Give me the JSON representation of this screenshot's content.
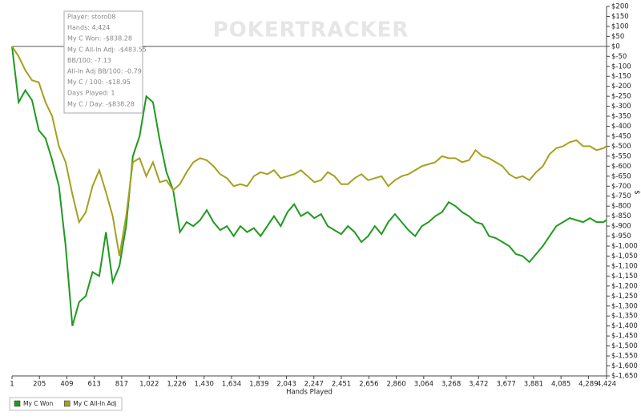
{
  "watermark": "POKERTRACKER",
  "tooltip": [
    "Player: storo08",
    "Hands: 4,424",
    "My C Won: -$838.28",
    "My C All-In Adj: -$483.55",
    "BB/100: -7.13",
    "All-In Adj BB/100: -0.79",
    "My C / 100: -$18.95",
    "Days Played: 1",
    "My C / Day: -$838.28"
  ],
  "chart_data": {
    "type": "line",
    "x_label": "Hands Played",
    "y_label": "$",
    "zero_line": true,
    "y_axis_side": "right",
    "x": [
      1,
      50,
      100,
      150,
      200,
      250,
      300,
      350,
      400,
      450,
      500,
      550,
      600,
      650,
      700,
      750,
      800,
      850,
      900,
      950,
      1000,
      1050,
      1100,
      1150,
      1200,
      1250,
      1300,
      1350,
      1400,
      1450,
      1500,
      1550,
      1600,
      1650,
      1700,
      1750,
      1800,
      1850,
      1900,
      1950,
      2000,
      2050,
      2100,
      2150,
      2200,
      2250,
      2300,
      2350,
      2400,
      2450,
      2500,
      2550,
      2600,
      2650,
      2700,
      2750,
      2800,
      2850,
      2900,
      2950,
      3000,
      3050,
      3100,
      3150,
      3200,
      3250,
      3300,
      3350,
      3400,
      3450,
      3500,
      3550,
      3600,
      3650,
      3700,
      3750,
      3800,
      3850,
      3900,
      3950,
      4000,
      4050,
      4100,
      4150,
      4200,
      4250,
      4300,
      4350,
      4400,
      4424
    ],
    "series": [
      {
        "name": "My C Won",
        "color": "#1f9a1f",
        "values": [
          0,
          -280,
          -220,
          -270,
          -420,
          -460,
          -570,
          -700,
          -1000,
          -1400,
          -1280,
          -1250,
          -1130,
          -1150,
          -930,
          -1180,
          -1100,
          -900,
          -550,
          -450,
          -250,
          -280,
          -470,
          -630,
          -720,
          -930,
          -880,
          -900,
          -870,
          -820,
          -880,
          -920,
          -900,
          -950,
          -900,
          -930,
          -910,
          -950,
          -900,
          -850,
          -900,
          -830,
          -790,
          -850,
          -830,
          -860,
          -840,
          -900,
          -920,
          -940,
          -900,
          -930,
          -980,
          -950,
          -900,
          -940,
          -880,
          -840,
          -880,
          -920,
          -950,
          -900,
          -880,
          -850,
          -830,
          -780,
          -800,
          -830,
          -850,
          -880,
          -890,
          -950,
          -960,
          -980,
          -1000,
          -1040,
          -1050,
          -1080,
          -1040,
          -1000,
          -950,
          -900,
          -880,
          -860,
          -870,
          -880,
          -860,
          -880,
          -880,
          -870
        ]
      },
      {
        "name": "My C All-In Adj",
        "color": "#a6a020",
        "values": [
          0,
          -50,
          -120,
          -170,
          -180,
          -280,
          -350,
          -500,
          -580,
          -740,
          -880,
          -830,
          -700,
          -620,
          -730,
          -850,
          -1050,
          -850,
          -580,
          -560,
          -650,
          -580,
          -680,
          -670,
          -720,
          -690,
          -630,
          -580,
          -560,
          -570,
          -600,
          -640,
          -660,
          -700,
          -690,
          -700,
          -650,
          -630,
          -640,
          -620,
          -660,
          -650,
          -640,
          -620,
          -650,
          -680,
          -670,
          -630,
          -650,
          -690,
          -690,
          -660,
          -640,
          -670,
          -660,
          -650,
          -700,
          -670,
          -650,
          -640,
          -620,
          -600,
          -590,
          -580,
          -550,
          -560,
          -560,
          -580,
          -570,
          -520,
          -550,
          -560,
          -580,
          -600,
          -640,
          -660,
          -650,
          -670,
          -630,
          -600,
          -540,
          -510,
          -500,
          -480,
          -470,
          -500,
          -500,
          -520,
          -510,
          -500
        ]
      }
    ],
    "xlim": [
      1,
      4424
    ],
    "xticks": [
      1,
      205,
      409,
      613,
      817,
      {
        "value": 1022,
        "label": "1,022"
      },
      {
        "value": 1226,
        "label": "1,226"
      },
      {
        "value": 1430,
        "label": "1,430"
      },
      {
        "value": 1634,
        "label": "1,634"
      },
      {
        "value": 1839,
        "label": "1,839"
      },
      {
        "value": 2043,
        "label": "2,043"
      },
      {
        "value": 2247,
        "label": "2,247"
      },
      {
        "value": 2451,
        "label": "2,451"
      },
      {
        "value": 2656,
        "label": "2,656"
      },
      {
        "value": 2860,
        "label": "2,860"
      },
      {
        "value": 3064,
        "label": "3,064"
      },
      {
        "value": 3268,
        "label": "3,268"
      },
      {
        "value": 3472,
        "label": "3,472"
      },
      {
        "value": 3677,
        "label": "3,677"
      },
      {
        "value": 3881,
        "label": "3,881"
      },
      {
        "value": 4085,
        "label": "4,085"
      },
      {
        "value": 4289,
        "label": "4,289"
      },
      {
        "value": 4424,
        "label": "4,424"
      }
    ],
    "ylim": [
      -1650,
      200
    ],
    "yticks": [
      {
        "value": 200,
        "label": "$200"
      },
      {
        "value": 150,
        "label": "$150"
      },
      {
        "value": 100,
        "label": "$100"
      },
      {
        "value": 50,
        "label": "$50"
      },
      {
        "value": 0,
        "label": "$0"
      },
      {
        "value": -50,
        "label": "$-50"
      },
      {
        "value": -100,
        "label": "$-100"
      },
      {
        "value": -150,
        "label": "$-150"
      },
      {
        "value": -200,
        "label": "$-200"
      },
      {
        "value": -250,
        "label": "$-250"
      },
      {
        "value": -300,
        "label": "$-300"
      },
      {
        "value": -350,
        "label": "$-350"
      },
      {
        "value": -400,
        "label": "$-400"
      },
      {
        "value": -450,
        "label": "$-450"
      },
      {
        "value": -500,
        "label": "$-500"
      },
      {
        "value": -550,
        "label": "$-550"
      },
      {
        "value": -600,
        "label": "$-600"
      },
      {
        "value": -650,
        "label": "$-650"
      },
      {
        "value": -700,
        "label": "$-700"
      },
      {
        "value": -750,
        "label": "$-750"
      },
      {
        "value": -800,
        "label": "$-800"
      },
      {
        "value": -850,
        "label": "$-850"
      },
      {
        "value": -900,
        "label": "$-900"
      },
      {
        "value": -950,
        "label": "$-950"
      },
      {
        "value": -1000,
        "label": "$-1,000"
      },
      {
        "value": -1050,
        "label": "$-1,050"
      },
      {
        "value": -1100,
        "label": "$-1,100"
      },
      {
        "value": -1150,
        "label": "$-1,150"
      },
      {
        "value": -1200,
        "label": "$-1,200"
      },
      {
        "value": -1250,
        "label": "$-1,250"
      },
      {
        "value": -1300,
        "label": "$-1,300"
      },
      {
        "value": -1350,
        "label": "$-1,350"
      },
      {
        "value": -1400,
        "label": "$-1,400"
      },
      {
        "value": -1450,
        "label": "$-1,450"
      },
      {
        "value": -1500,
        "label": "$-1,500"
      },
      {
        "value": -1550,
        "label": "$-1,550"
      },
      {
        "value": -1600,
        "label": "$-1,600"
      },
      {
        "value": -1650,
        "label": "$-1,650"
      }
    ]
  }
}
